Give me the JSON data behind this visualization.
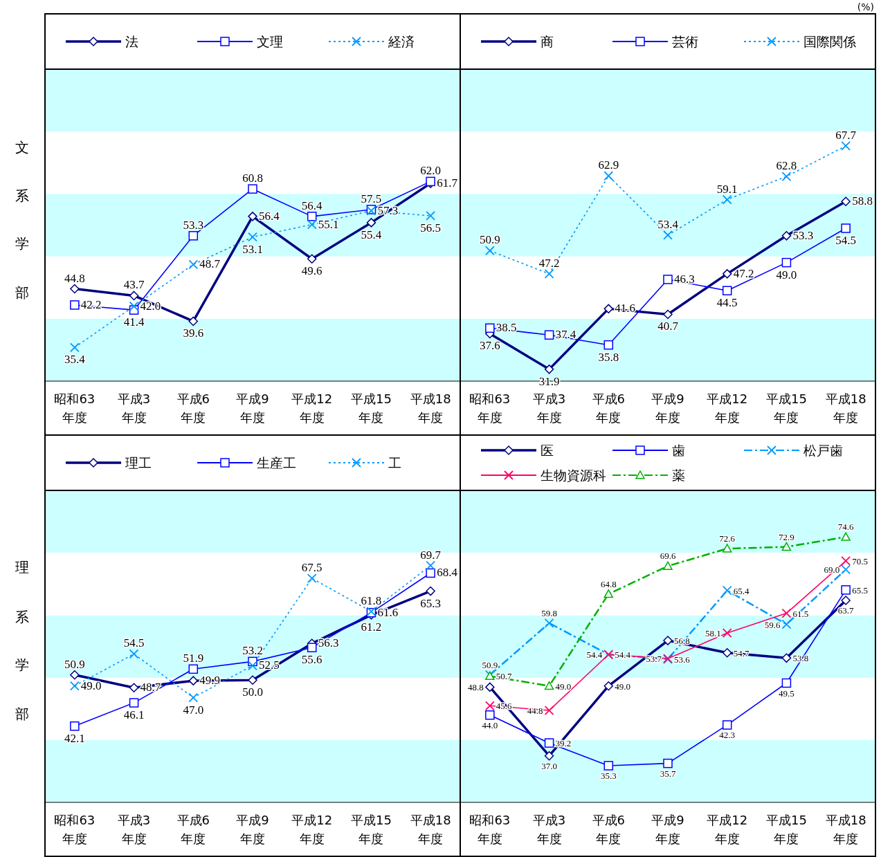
{
  "chart_data": [
    {
      "type": "line",
      "ylabel": "文系学部",
      "categories": [
        "昭和63\n年度",
        "平成3\n年度",
        "平成6\n年度",
        "平成9\n年度",
        "平成12\n年度",
        "平成15\n年度",
        "平成18\n年度"
      ],
      "ylim": [
        30,
        80
      ],
      "tick_labels": "x",
      "legend": "top",
      "data_labels": true,
      "bands": [
        {
          "axis": "y",
          "from": 30,
          "to": 40,
          "color": "#ccffff"
        },
        {
          "axis": "y",
          "from": 50,
          "to": 60,
          "color": "#ccffff"
        },
        {
          "axis": "y",
          "from": 70,
          "to": 80,
          "color": "#ccffff"
        }
      ],
      "series": [
        {
          "name": "法",
          "color": "#000080",
          "marker": "diamond",
          "line_style": "solid",
          "values": [
            44.8,
            43.7,
            39.6,
            56.4,
            49.6,
            55.4,
            61.7
          ],
          "value_labels": [
            "44.8",
            "43.7",
            "39.6",
            "56.4",
            "49.6",
            "55.4",
            "61.7"
          ]
        },
        {
          "name": "文理",
          "color": "#0000ff",
          "marker": "square",
          "line_style": "solid",
          "values": [
            42.2,
            41.4,
            53.3,
            60.8,
            56.4,
            57.5,
            62.0
          ],
          "value_labels": [
            "42.2",
            "41.4",
            "53.3",
            "60.8",
            "56.4",
            "57.5",
            "62.0"
          ]
        },
        {
          "name": "経済",
          "color": "#0099ff",
          "marker": "cross",
          "line_style": "dotted",
          "values": [
            35.4,
            42.0,
            48.7,
            53.1,
            55.1,
            57.3,
            56.5
          ],
          "value_labels": [
            "35.4",
            "42.0",
            "48.7",
            "53.1",
            "55.1",
            "57.3",
            "56.5"
          ]
        }
      ]
    },
    {
      "type": "line",
      "annotations": [
        "(%)"
      ],
      "categories": [
        "昭和63\n年度",
        "平成3\n年度",
        "平成6\n年度",
        "平成9\n年度",
        "平成12\n年度",
        "平成15\n年度",
        "平成18\n年度"
      ],
      "ylim": [
        30,
        80
      ],
      "tick_labels": "x",
      "legend": "top",
      "data_labels": true,
      "bands": [
        {
          "axis": "y",
          "from": 30,
          "to": 40,
          "color": "#ccffff"
        },
        {
          "axis": "y",
          "from": 50,
          "to": 60,
          "color": "#ccffff"
        },
        {
          "axis": "y",
          "from": 70,
          "to": 80,
          "color": "#ccffff"
        }
      ],
      "series": [
        {
          "name": "商",
          "color": "#000080",
          "marker": "diamond",
          "line_style": "solid",
          "values": [
            37.6,
            31.9,
            41.6,
            40.7,
            47.2,
            53.3,
            58.8
          ],
          "value_labels": [
            "37.6",
            "31.9",
            "41.6",
            "40.7",
            "47.2",
            "53.3",
            "58.8"
          ]
        },
        {
          "name": "芸術",
          "color": "#0000ff",
          "marker": "square",
          "line_style": "solid",
          "values": [
            38.5,
            37.4,
            35.8,
            46.3,
            44.5,
            49.0,
            54.5
          ],
          "value_labels": [
            "38.5",
            "37.4",
            "35.8",
            "46.3",
            "44.5",
            "49.0",
            "54.5"
          ]
        },
        {
          "name": "国際関係",
          "color": "#0099ff",
          "marker": "cross",
          "line_style": "dotted",
          "values": [
            50.9,
            47.2,
            62.9,
            53.4,
            59.1,
            62.8,
            67.7
          ],
          "value_labels": [
            "50.9",
            "47.2",
            "62.9",
            "53.4",
            "59.1",
            "62.8",
            "67.7"
          ]
        }
      ]
    },
    {
      "type": "line",
      "ylabel": "理系学部",
      "categories": [
        "昭和63\n年度",
        "平成3\n年度",
        "平成6\n年度",
        "平成9\n年度",
        "平成12\n年度",
        "平成15\n年度",
        "平成18\n年度"
      ],
      "ylim": [
        29,
        82.6
      ],
      "tick_labels": "x",
      "legend": "top",
      "data_labels": true,
      "bands": [
        {
          "axis": "y",
          "from": 29,
          "to": 39.7,
          "color": "#ccffff"
        },
        {
          "axis": "y",
          "from": 50.4,
          "to": 61.1,
          "color": "#ccffff"
        },
        {
          "axis": "y",
          "from": 71.9,
          "to": 82.6,
          "color": "#ccffff"
        }
      ],
      "series": [
        {
          "name": "理工",
          "color": "#000080",
          "marker": "diamond",
          "line_style": "solid",
          "values": [
            50.9,
            48.7,
            49.9,
            50.0,
            56.3,
            61.2,
            65.3
          ],
          "value_labels": [
            "50.9",
            "48.7",
            "49.9",
            "50.0",
            "56.3",
            "61.2",
            "65.3"
          ]
        },
        {
          "name": "生産工",
          "color": "#0000ff",
          "marker": "square",
          "line_style": "solid",
          "values": [
            42.1,
            46.1,
            51.9,
            53.2,
            55.6,
            61.6,
            68.4
          ],
          "value_labels": [
            "42.1",
            "46.1",
            "51.9",
            "53.2",
            "55.6",
            "61.6",
            "68.4"
          ]
        },
        {
          "name": "工",
          "color": "#0099ff",
          "marker": "cross",
          "line_style": "dotted",
          "values": [
            49.0,
            54.5,
            47.0,
            52.5,
            67.5,
            61.8,
            69.7
          ],
          "value_labels": [
            "49.0",
            "54.5",
            "47.0",
            "52.5",
            "67.5",
            "61.8",
            "69.7"
          ]
        }
      ]
    },
    {
      "type": "line",
      "categories": [
        "昭和63\n年度",
        "平成3\n年度",
        "平成6\n年度",
        "平成9\n年度",
        "平成12\n年度",
        "平成15\n年度",
        "平成18\n年度"
      ],
      "ylim": [
        29,
        82.6
      ],
      "tick_labels": "x",
      "legend": "top",
      "data_labels": true,
      "bands": [
        {
          "axis": "y",
          "from": 29,
          "to": 39.7,
          "color": "#ccffff"
        },
        {
          "axis": "y",
          "from": 50.4,
          "to": 61.1,
          "color": "#ccffff"
        },
        {
          "axis": "y",
          "from": 71.9,
          "to": 82.6,
          "color": "#ccffff"
        }
      ],
      "series": [
        {
          "name": "医",
          "color": "#000080",
          "marker": "diamond",
          "line_style": "solid",
          "values": [
            48.8,
            37.0,
            49.0,
            56.8,
            54.7,
            53.8,
            63.7
          ],
          "value_labels": [
            "48.8",
            "37.0",
            "49.0",
            "56.8",
            "54.7",
            "53.8",
            "63.7"
          ]
        },
        {
          "name": "歯",
          "color": "#0000ff",
          "marker": "square",
          "line_style": "solid",
          "values": [
            44.0,
            39.2,
            35.3,
            35.7,
            42.3,
            49.5,
            65.5
          ],
          "value_labels": [
            "44.0",
            "39.2",
            "35.3",
            "35.7",
            "42.3",
            "49.5",
            "65.5"
          ]
        },
        {
          "name": "松戸歯",
          "color": "#0099ff",
          "marker": "cross",
          "line_style": "dashdot",
          "values": [
            50.9,
            59.8,
            54.4,
            53.6,
            65.4,
            59.6,
            69.0
          ],
          "value_labels": [
            "50.9",
            "59.8",
            "54.4",
            "53.6",
            "65.4",
            "59.6",
            "69.0"
          ]
        },
        {
          "name": "生物資源科",
          "color": "#ff0066",
          "marker": "cross",
          "line_style": "solid",
          "values": [
            45.6,
            44.8,
            54.4,
            53.7,
            58.1,
            61.5,
            70.5
          ],
          "value_labels": [
            "45.6",
            "44.8",
            "54.4",
            "53.7",
            "58.1",
            "61.5",
            "70.5"
          ]
        },
        {
          "name": "薬",
          "color": "#00b000",
          "marker": "triangle",
          "line_style": "dashdot",
          "values": [
            50.7,
            49.0,
            64.8,
            69.6,
            72.6,
            72.9,
            74.6
          ],
          "value_labels": [
            "50.7",
            "49.0",
            "64.8",
            "69.6",
            "72.6",
            "72.9",
            "74.6"
          ]
        }
      ]
    }
  ]
}
